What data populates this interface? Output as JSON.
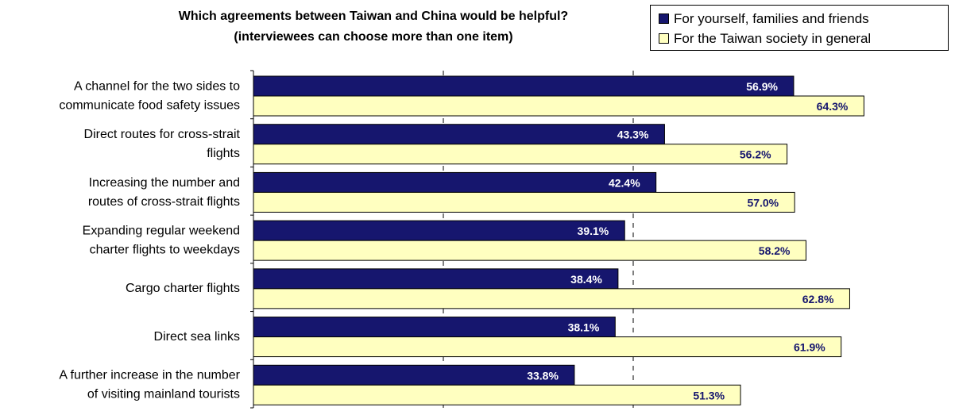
{
  "chart_data": {
    "type": "bar",
    "orientation": "horizontal",
    "title": [
      "Which agreements between Taiwan and China would be helpful?",
      "(interviewees can choose more than one item)"
    ],
    "categories": [
      [
        "A channel for the two sides to",
        "communicate food safety issues"
      ],
      [
        "Direct routes for cross-strait",
        "flights"
      ],
      [
        "Increasing the number and",
        "routes of cross-strait flights"
      ],
      [
        "Expanding regular weekend",
        "charter flights to weekdays"
      ],
      [
        "Cargo charter flights"
      ],
      [
        "Direct sea links"
      ],
      [
        "A further increase in the number",
        "of visiting mainland tourists"
      ]
    ],
    "series": [
      {
        "name": "For yourself, families and friends",
        "color": "#16166e",
        "label_color": "#ffffff",
        "values": [
          56.9,
          43.3,
          42.4,
          39.1,
          38.4,
          38.1,
          33.8
        ],
        "labels": [
          "56.9%",
          "43.3%",
          "42.4%",
          "39.1%",
          "38.4%",
          "38.1%",
          "33.8%"
        ]
      },
      {
        "name": "For the Taiwan society in general",
        "color": "#ffffc0",
        "label_color": "#16166e",
        "values": [
          64.3,
          56.2,
          57.0,
          58.2,
          62.8,
          61.9,
          51.3
        ],
        "labels": [
          "64.3%",
          "56.2%",
          "57.0%",
          "58.2%",
          "62.8%",
          "61.9%",
          "51.3%"
        ]
      }
    ],
    "xlim": [
      0,
      80
    ],
    "gridlines": [
      20,
      40
    ],
    "grid_style": "dashed",
    "legend_position": "top-right",
    "xlabel": "",
    "ylabel": ""
  }
}
